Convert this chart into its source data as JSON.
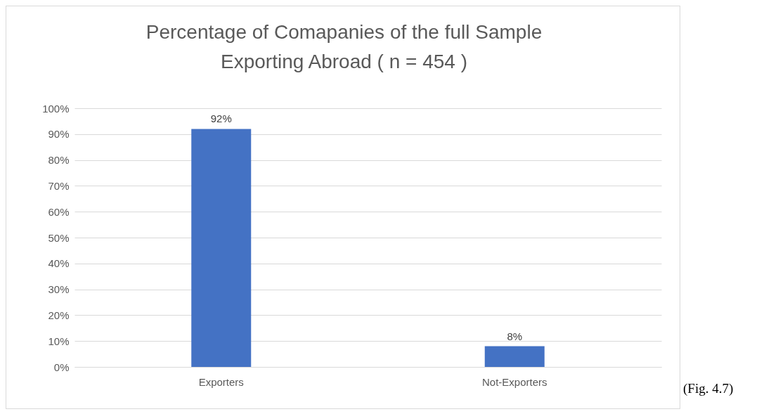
{
  "chart_data": {
    "type": "bar",
    "title": "Percentage of Comapanies of the full Sample Exporting Abroad ( n = 454 )",
    "categories": [
      "Exporters",
      "Not-Exporters"
    ],
    "values": [
      92,
      8
    ],
    "color": "#4472c4",
    "value_labels": [
      "92%",
      "8%"
    ],
    "ylim": [
      0,
      100
    ],
    "yticks": [
      {
        "value": 0,
        "label": "0%"
      },
      {
        "value": 10,
        "label": "10%"
      },
      {
        "value": 20,
        "label": "20%"
      },
      {
        "value": 30,
        "label": "30%"
      },
      {
        "value": 40,
        "label": "40%"
      },
      {
        "value": 50,
        "label": "50%"
      },
      {
        "value": 60,
        "label": "60%"
      },
      {
        "value": 70,
        "label": "70%"
      },
      {
        "value": 80,
        "label": "80%"
      },
      {
        "value": 90,
        "label": "90%"
      },
      {
        "value": 100,
        "label": "100%"
      }
    ],
    "grid": "y",
    "annotations": [
      "(Fig. 4.7)"
    ]
  }
}
